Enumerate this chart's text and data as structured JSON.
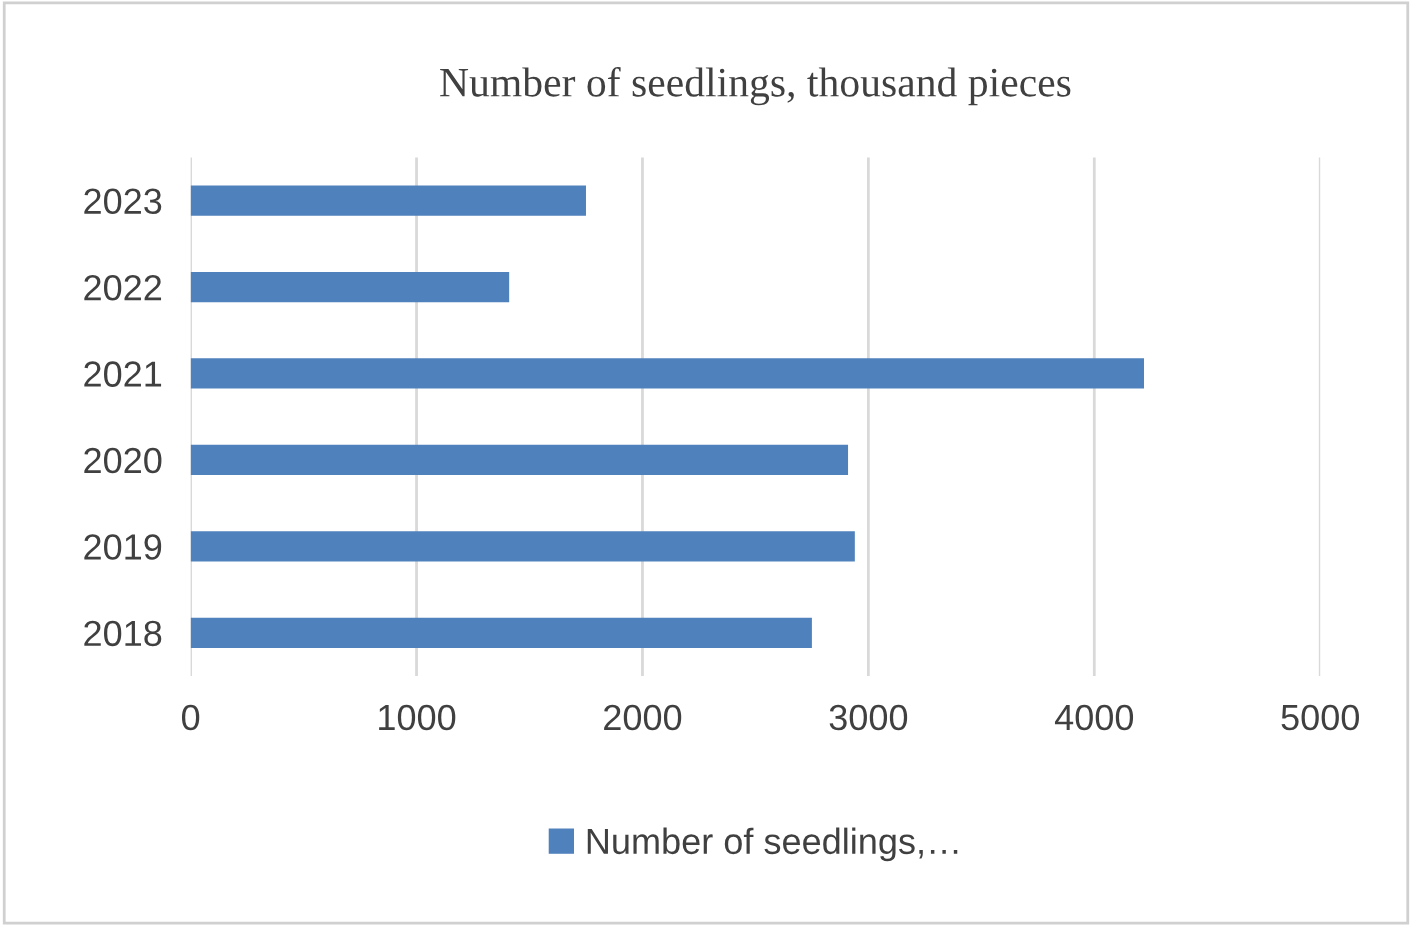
{
  "chart_data": {
    "type": "bar",
    "orientation": "horizontal",
    "title": "Number of seedlings, thousand pieces",
    "categories": [
      "2023",
      "2022",
      "2021",
      "2020",
      "2019",
      "2018"
    ],
    "series": [
      {
        "name": "Number of seedlings,…",
        "color": "#4f81bd",
        "values": [
          1750,
          1410,
          4220,
          2910,
          2940,
          2750
        ]
      }
    ],
    "xlim": [
      0,
      5000
    ],
    "xticks": [
      0,
      1000,
      2000,
      3000,
      4000,
      5000
    ],
    "grid": "x",
    "legend": "bottom"
  }
}
